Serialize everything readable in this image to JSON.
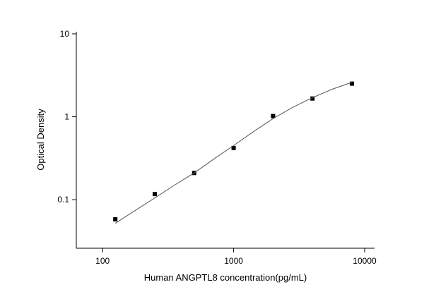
{
  "chart_data": {
    "type": "scatter",
    "x_label": "Human ANGPTL8 concentration(pg/mL)",
    "y_label": "Optical Density",
    "log_x": true,
    "log_y": true,
    "xlim": [
      63,
      11900
    ],
    "ylim": [
      0.026,
      10.6
    ],
    "xticks": [
      100,
      1000,
      10000
    ],
    "yticks": [
      0.1,
      1,
      10
    ],
    "series": [
      {
        "type": "scatter",
        "color": "#000000",
        "x": [
          125,
          250,
          500,
          1000,
          2000,
          4000,
          8000
        ],
        "values": [
          0.058,
          0.117,
          0.21,
          0.42,
          1.02,
          1.66,
          2.51
        ]
      },
      {
        "type": "line",
        "color": "#555555",
        "x": [
          125,
          177,
          250,
          354,
          500,
          707,
          1000,
          1414,
          2000,
          2828,
          4000,
          5657,
          8000
        ],
        "values": [
          0.052,
          0.074,
          0.105,
          0.15,
          0.21,
          0.31,
          0.45,
          0.66,
          0.95,
          1.3,
          1.7,
          2.15,
          2.6
        ]
      }
    ]
  }
}
